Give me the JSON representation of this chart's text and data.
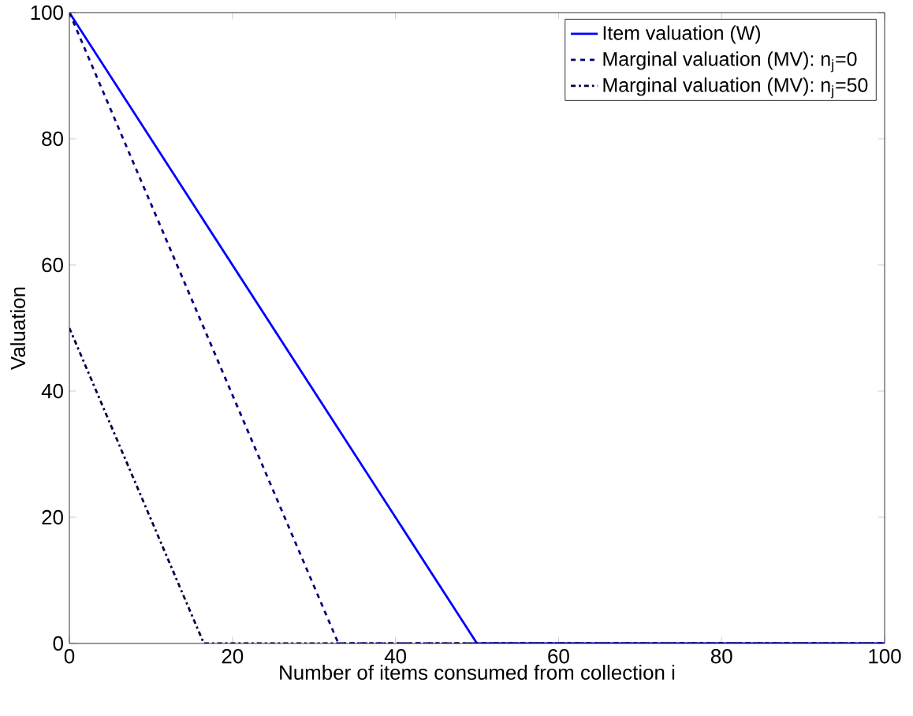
{
  "chart_data": {
    "type": "line",
    "xlabel": "Number of items consumed from collection i",
    "ylabel": "Valuation",
    "xlim": [
      0,
      100
    ],
    "ylim": [
      0,
      100
    ],
    "xticks": [
      0,
      20,
      40,
      60,
      80,
      100
    ],
    "yticks": [
      0,
      20,
      40,
      60,
      80,
      100
    ],
    "legend": "top right",
    "grid": false,
    "series": [
      {
        "name": "Item valuation (W)",
        "color": "#0000ff",
        "line_style": "solid",
        "x": [
          0,
          50,
          100
        ],
        "values": [
          100,
          0,
          0
        ]
      },
      {
        "name": "Marginal valuation (MV): n$_{j}$=0",
        "color": "#00007f",
        "line_style": "dashed",
        "x": [
          0,
          33,
          100
        ],
        "values": [
          100,
          0,
          0
        ]
      },
      {
        "name": "Marginal valuation (MV): n$_{j}$=50",
        "color": "#000040",
        "line_style": "dashdot",
        "x": [
          0,
          16.5,
          100
        ],
        "values": [
          50,
          0,
          0
        ]
      }
    ]
  }
}
